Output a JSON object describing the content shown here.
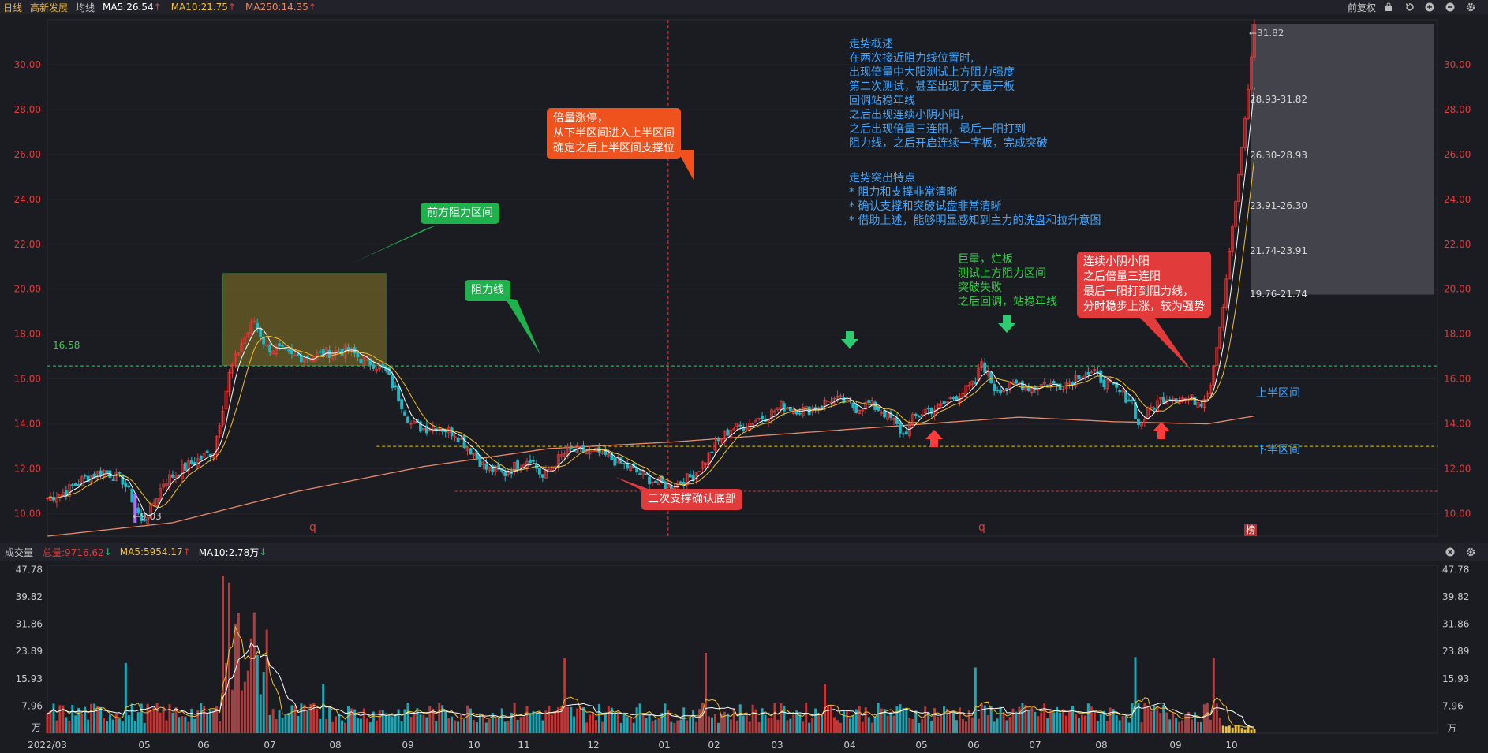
{
  "header": {
    "period_label": "日线",
    "stock_name": "高新发展",
    "ma_group_label": "均线",
    "ma5": "MA5:26.54",
    "ma10": "MA10:21.75",
    "ma250": "MA250:14.35",
    "adjust_label": "前复权",
    "colors": {
      "ma5": "#ffffff",
      "ma10": "#f2c12e",
      "ma250": "#e88a6a",
      "up": "#e23b3b",
      "down": "#22b7c4"
    }
  },
  "volume_header": {
    "title": "成交量",
    "total": "总量:9716.62",
    "ma5": "MA5:5954.17",
    "ma10": "MA10:2.78万"
  },
  "annotations": {
    "summary": "走势概述\n在两次接近阻力线位置时,\n出现倍量中大阳测试上方阻力强度\n第二次测试，甚至出现了天量开板\n回调站稳年线\n之后出现连续小阴小阳，\n之后出现倍量三连阳，最后一阳打到\n阻力线，之后开启连续一字板，完成突破",
    "features": "走势突出特点\n* 阻力和支撑非常清晰\n* 确认支撑和突破试盘非常清晰\n* 借助上述，能够明显感知到主力的洗盘和拉升意图",
    "huge_volume": "巨量，烂板\n测试上方阻力区间\n突破失败\n之后回调，站稳年线",
    "callout_limit_up": "倍量涨停，\n从下半区间进入上半区间\n确定之后上半区间支撑位",
    "callout_front_resistance": "前方阻力区间",
    "callout_resistance_line": "阻力线",
    "callout_triple_support": "三次支撑确认底部",
    "callout_final": "连续小阴小阳\n之后倍量三连阳\n最后一阳打到阻力线，\n分时稳步上涨，较为强势",
    "upper_zone": "上半区间",
    "lower_zone": "下半区间",
    "resistance_value": "16.58",
    "low_marker": "←9.03",
    "high_marker": "←31.82",
    "q1": "q",
    "q2": "q",
    "bang": "榜",
    "wan": "万"
  },
  "target_ranges": [
    "28.93-31.82",
    "26.30-28.93",
    "23.91-26.30",
    "21.74-23.91",
    "19.76-21.74"
  ],
  "chart_data": [
    {
      "type": "candlestick",
      "title": "日线 高新发展",
      "y_ticks": [
        "30.00",
        "28.00",
        "26.00",
        "24.00",
        "22.00",
        "20.00",
        "18.00",
        "16.00",
        "14.00",
        "12.00",
        "10.00"
      ],
      "ylim": [
        9.0,
        32.0
      ],
      "x_ticks": [
        "2022/03",
        "05",
        "06",
        "07",
        "08",
        "09",
        "10",
        "11",
        "12",
        "01",
        "02",
        "03",
        "04",
        "05",
        "06",
        "07",
        "08",
        "09",
        "10"
      ],
      "resistance_line": 16.58,
      "support_line": 13.0,
      "bottom_line": 11.0,
      "resistance_zone": [
        16.6,
        20.7
      ],
      "close_path": [
        [
          0,
          10.7
        ],
        [
          6,
          11.0
        ],
        [
          12,
          11.6
        ],
        [
          18,
          11.9
        ],
        [
          24,
          11.5
        ],
        [
          28,
          10.4
        ],
        [
          30,
          9.6
        ],
        [
          33,
          10.2
        ],
        [
          37,
          11.4
        ],
        [
          42,
          11.9
        ],
        [
          48,
          12.4
        ],
        [
          53,
          12.8
        ],
        [
          56,
          14.8
        ],
        [
          58,
          16.2
        ],
        [
          62,
          17.6
        ],
        [
          66,
          18.6
        ],
        [
          70,
          17.4
        ],
        [
          74,
          17.3
        ],
        [
          78,
          17.0
        ],
        [
          84,
          17.0
        ],
        [
          90,
          17.2
        ],
        [
          96,
          17.3
        ],
        [
          100,
          16.9
        ],
        [
          104,
          16.7
        ],
        [
          108,
          16.3
        ],
        [
          112,
          15.2
        ],
        [
          116,
          14.0
        ],
        [
          120,
          13.8
        ],
        [
          124,
          13.9
        ],
        [
          130,
          13.6
        ],
        [
          136,
          12.7
        ],
        [
          140,
          12.0
        ],
        [
          146,
          11.8
        ],
        [
          150,
          12.2
        ],
        [
          154,
          12.5
        ],
        [
          158,
          11.6
        ],
        [
          162,
          12.3
        ],
        [
          166,
          12.8
        ],
        [
          170,
          12.8
        ],
        [
          176,
          12.7
        ],
        [
          182,
          12.3
        ],
        [
          186,
          12.0
        ],
        [
          190,
          11.7
        ],
        [
          194,
          11.4
        ],
        [
          198,
          11.2
        ],
        [
          202,
          11.4
        ],
        [
          206,
          11.7
        ],
        [
          210,
          12.4
        ],
        [
          214,
          13.2
        ],
        [
          218,
          13.8
        ],
        [
          222,
          13.9
        ],
        [
          226,
          14.2
        ],
        [
          230,
          14.4
        ],
        [
          234,
          14.8
        ],
        [
          238,
          14.7
        ],
        [
          242,
          14.6
        ],
        [
          246,
          14.8
        ],
        [
          250,
          15.1
        ],
        [
          254,
          15.0
        ],
        [
          258,
          14.7
        ],
        [
          262,
          14.9
        ],
        [
          266,
          14.6
        ],
        [
          270,
          14.1
        ],
        [
          273,
          13.5
        ],
        [
          276,
          14.2
        ],
        [
          280,
          14.6
        ],
        [
          284,
          14.7
        ],
        [
          288,
          15.1
        ],
        [
          292,
          15.4
        ],
        [
          296,
          15.8
        ],
        [
          298,
          16.8
        ],
        [
          302,
          15.6
        ],
        [
          306,
          15.6
        ],
        [
          310,
          15.8
        ],
        [
          314,
          15.6
        ],
        [
          318,
          15.8
        ],
        [
          322,
          15.7
        ],
        [
          326,
          15.9
        ],
        [
          330,
          16.3
        ],
        [
          334,
          16.2
        ],
        [
          338,
          15.8
        ],
        [
          342,
          15.4
        ],
        [
          346,
          15.0
        ],
        [
          348,
          13.9
        ],
        [
          352,
          14.7
        ],
        [
          356,
          15.2
        ],
        [
          360,
          15.2
        ],
        [
          364,
          15.1
        ],
        [
          368,
          15.0
        ],
        [
          371,
          15.8
        ],
        [
          373,
          17.4
        ],
        [
          375,
          19.2
        ],
        [
          377,
          21.7
        ],
        [
          379,
          23.9
        ],
        [
          381,
          26.3
        ],
        [
          383,
          28.9
        ],
        [
          385,
          31.8
        ]
      ],
      "ma250_path": [
        [
          0,
          9.0
        ],
        [
          40,
          9.6
        ],
        [
          80,
          11.0
        ],
        [
          120,
          12.1
        ],
        [
          160,
          12.9
        ],
        [
          200,
          13.2
        ],
        [
          240,
          13.6
        ],
        [
          280,
          14.0
        ],
        [
          310,
          14.3
        ],
        [
          340,
          14.1
        ],
        [
          370,
          14.0
        ],
        [
          385,
          14.35
        ]
      ],
      "volume_ticks": [
        "47.78",
        "39.82",
        "31.86",
        "23.89",
        "15.93",
        "7.96",
        "万"
      ],
      "volume_ylim": [
        0,
        49.0
      ]
    }
  ]
}
